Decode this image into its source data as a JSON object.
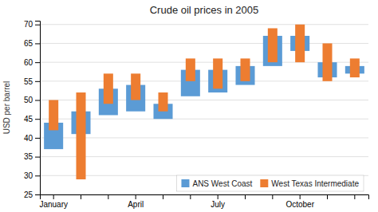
{
  "chart_data": {
    "type": "bar",
    "title": "Crude oil prices in 2005",
    "y_label": "USD per barrel",
    "categories": [
      "January",
      null,
      null,
      "April",
      null,
      null,
      "July",
      null,
      null,
      "October",
      null,
      null
    ],
    "series": [
      {
        "name": "ANS West Coast",
        "color": "#5b9bd5",
        "low": [
          37,
          41,
          46,
          47,
          45,
          51,
          52,
          54,
          59,
          63,
          56,
          57
        ],
        "high": [
          44,
          47,
          53,
          54,
          49,
          58,
          58,
          59,
          67,
          67,
          60,
          59
        ]
      },
      {
        "name": "West Texas Intermediate",
        "color": "#ed7d31",
        "low": [
          42,
          29,
          49,
          50,
          47,
          55,
          53,
          55,
          60,
          60,
          55,
          56
        ],
        "high": [
          50,
          52,
          57,
          57,
          52,
          61,
          61,
          61,
          69,
          70,
          65,
          61
        ]
      }
    ],
    "ylim": [
      25,
      71
    ],
    "yticks": [
      25,
      30,
      35,
      40,
      45,
      50,
      55,
      60,
      65,
      70
    ],
    "grid": true,
    "legend": "lower-right"
  }
}
